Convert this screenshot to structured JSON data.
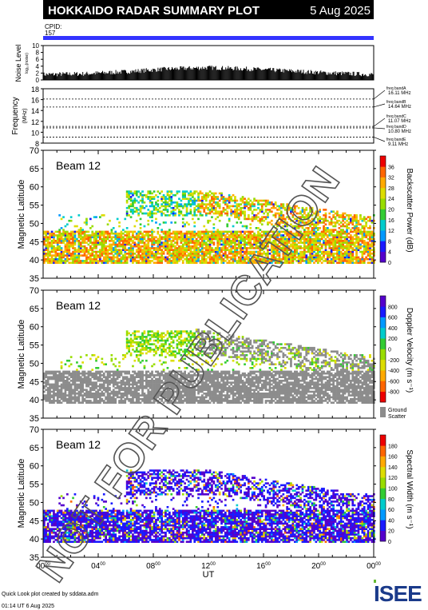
{
  "header": {
    "title": "HOKKAIDO RADAR SUMMARY PLOT",
    "date": "5 Aug 2025",
    "cpid_label": "CPID:",
    "cpid_value": "157"
  },
  "colors": {
    "header_bg": "#000000",
    "cpid_bar": "#3333ff",
    "ground_scatter": "#8c8c8c"
  },
  "watermark": "NOT FOR PUBLICATION",
  "noise_panel": {
    "ylabel": "Noise Level",
    "ylabel_small": "log₁₀(noise)",
    "yticks": [
      "0",
      "2",
      "4",
      "6",
      "8",
      "10"
    ],
    "ylim": [
      0,
      10
    ],
    "series_profile": [
      [
        0,
        1.4
      ],
      [
        3,
        1.6
      ],
      [
        6,
        2.2
      ],
      [
        9,
        3.0
      ],
      [
        12,
        3.4
      ],
      [
        15,
        3.0
      ],
      [
        18,
        2.4
      ],
      [
        21,
        1.8
      ],
      [
        24,
        1.4
      ]
    ]
  },
  "freq_panel": {
    "ylabel": "Frequency",
    "ylabel_units": "(MHz)",
    "yticks": [
      "8",
      "10",
      "12",
      "14",
      "16",
      "18"
    ],
    "ylim": [
      8,
      18
    ],
    "bands": [
      {
        "name": "freq bandA",
        "value": "16.11 MHz",
        "mhz": 16.11
      },
      {
        "name": "freq bandB",
        "value": "14.64 MHz",
        "mhz": 14.64
      },
      {
        "name": "freq bandC",
        "value": "11.07 MHz",
        "mhz": 11.07
      },
      {
        "name": "freq bandD",
        "value": "10.80 MHz",
        "mhz": 10.8
      },
      {
        "name": "freq bandE",
        "value": "9.11 MHz",
        "mhz": 9.11
      }
    ]
  },
  "rti_panels": [
    {
      "id": "power",
      "beam": "Beam 12",
      "ylabel": "Magnetic Latitude",
      "cbar_label": "Backscatter Power (dB)",
      "cbar_ticks": [
        "0",
        "4",
        "8",
        "12",
        "16",
        "20",
        "24",
        "28",
        "32",
        "36"
      ],
      "cbar_colors": [
        "#5500cc",
        "#1a1aff",
        "#0099ff",
        "#00cccc",
        "#33cc33",
        "#99dd00",
        "#dddd00",
        "#ffaa00",
        "#ff6600",
        "#ee0000"
      ]
    },
    {
      "id": "velocity",
      "beam": "Beam 12",
      "ylabel": "Magnetic Latitude",
      "cbar_label": "Doppler Velocity (m s⁻¹)",
      "cbar_ticks": [
        "-800",
        "-600",
        "-400",
        "-200",
        "0",
        "200",
        "400",
        "600",
        "800"
      ],
      "cbar_colors": [
        "#ee0000",
        "#ff6600",
        "#ffaa00",
        "#dddd00",
        "#99dd00",
        "#33cc33",
        "#00cccc",
        "#0099ff",
        "#1a1aff",
        "#5500cc"
      ],
      "ground_scatter_label": "Ground Scatter"
    },
    {
      "id": "width",
      "beam": "Beam 12",
      "ylabel": "Magnetic Latitude",
      "cbar_label": "Spectral Width (m s⁻¹)",
      "cbar_ticks": [
        "0",
        "20",
        "40",
        "60",
        "80",
        "100",
        "120",
        "140",
        "160",
        "180"
      ],
      "cbar_colors": [
        "#5500cc",
        "#1a1aff",
        "#0099ff",
        "#00cccc",
        "#33cc33",
        "#99dd00",
        "#dddd00",
        "#ffaa00",
        "#ff6600",
        "#ee0000"
      ]
    }
  ],
  "lat_ticks": [
    "35",
    "40",
    "45",
    "50",
    "55",
    "60",
    "65",
    "70"
  ],
  "lat_range": [
    35,
    70
  ],
  "time_axis": {
    "label": "UT",
    "ticks": [
      {
        "h": "00",
        "m": "00"
      },
      {
        "h": "04",
        "m": "00"
      },
      {
        "h": "08",
        "m": "00"
      },
      {
        "h": "12",
        "m": "00"
      },
      {
        "h": "16",
        "m": "00"
      },
      {
        "h": "20",
        "m": "00"
      },
      {
        "h": "00",
        "m": "00"
      }
    ]
  },
  "footer": {
    "line1": "Quick Look plot created by sddata.adm",
    "line2": "01:14 UT 6 Aug 2025",
    "logo": "ISEE"
  },
  "chart_data": {
    "type": "heatmap",
    "title": "HOKKAIDO RADAR SUMMARY PLOT",
    "date": "5 Aug 2025",
    "beam": "Beam 12",
    "x_label": "UT",
    "x_range_hours": [
      0,
      24
    ],
    "y_label": "Magnetic Latitude",
    "y_range": [
      35,
      70
    ],
    "regions": [
      {
        "name": "lower scatter band",
        "ut_start": 0,
        "ut_end": 24,
        "mlat_low": 39,
        "mlat_high": 47
      },
      {
        "name": "evening-sector band",
        "ut_start": 6,
        "ut_end": 12,
        "mlat_low": 52,
        "mlat_high": 58
      },
      {
        "name": "diagonal band",
        "ut_start": 11,
        "ut_end": 24,
        "mlat_low": 47,
        "mlat_high": 60
      }
    ]
  }
}
